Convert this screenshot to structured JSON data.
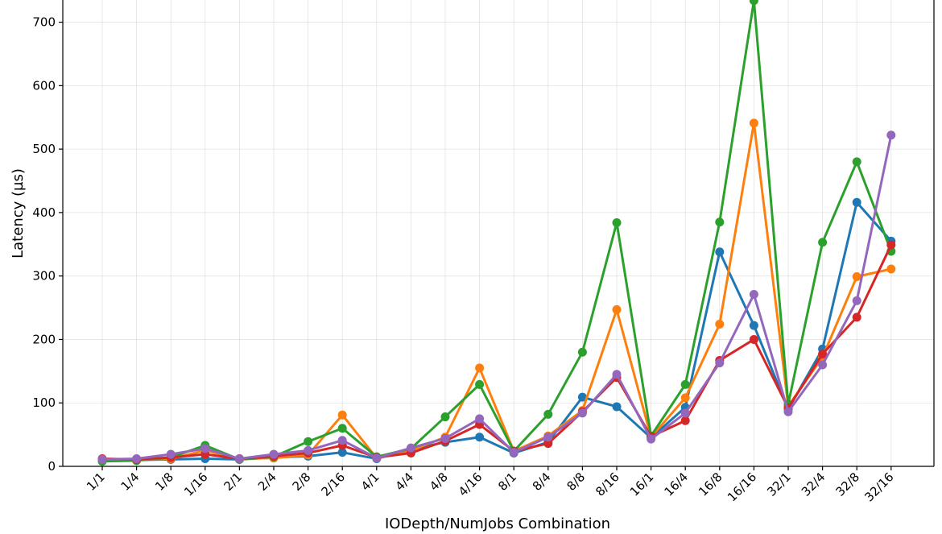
{
  "chart_data": {
    "type": "line",
    "title": "",
    "xlabel": "IODepth/NumJobs Combination",
    "ylabel": "Latency (µs)",
    "ylim": [
      0,
      735
    ],
    "yticks": [
      0,
      100,
      200,
      300,
      400,
      500,
      600,
      700
    ],
    "grid": true,
    "categories": [
      "1/1",
      "1/4",
      "1/8",
      "1/16",
      "2/1",
      "2/4",
      "2/8",
      "2/16",
      "4/1",
      "4/4",
      "4/8",
      "4/16",
      "8/1",
      "8/4",
      "8/8",
      "8/16",
      "16/1",
      "16/4",
      "16/8",
      "16/16",
      "32/1",
      "32/4",
      "32/8",
      "32/16"
    ],
    "series": [
      {
        "color": "#1f77b4",
        "values": [
          10,
          10,
          11,
          12,
          11,
          14,
          16,
          22,
          12,
          27,
          38,
          46,
          21,
          38,
          109,
          94,
          45,
          93,
          338,
          222,
          90,
          185,
          416,
          355
        ]
      },
      {
        "color": "#ff7f0e",
        "values": [
          9,
          10,
          12,
          25,
          12,
          13,
          18,
          81,
          13,
          25,
          46,
          155,
          24,
          48,
          88,
          247,
          46,
          108,
          224,
          541,
          95,
          172,
          299,
          311
        ]
      },
      {
        "color": "#2ca02c",
        "values": [
          8,
          9,
          14,
          33,
          11,
          15,
          39,
          60,
          15,
          28,
          78,
          129,
          24,
          82,
          180,
          384,
          48,
          129,
          385,
          734,
          98,
          353,
          480,
          339
        ]
      },
      {
        "color": "#d62728",
        "values": [
          12,
          11,
          14,
          19,
          12,
          16,
          21,
          33,
          14,
          21,
          40,
          66,
          24,
          36,
          86,
          140,
          47,
          72,
          167,
          200,
          92,
          177,
          235,
          349
        ]
      },
      {
        "color": "#9467bd",
        "values": [
          11,
          12,
          19,
          28,
          12,
          19,
          25,
          41,
          13,
          29,
          44,
          75,
          22,
          46,
          84,
          145,
          43,
          84,
          163,
          271,
          86,
          160,
          261,
          522
        ]
      }
    ]
  }
}
